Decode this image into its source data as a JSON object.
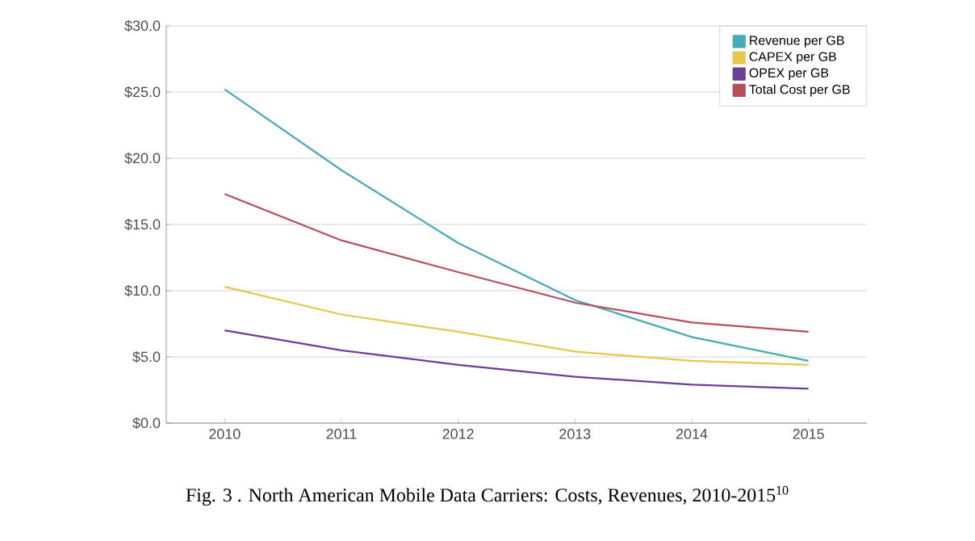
{
  "chart_data": {
    "type": "line",
    "title": "Fig. 3 .  North American Mobile Data Carriers: Costs, Revenues, 2010-2015$^{10}$",
    "categories": [
      "2010",
      "2011",
      "2012",
      "2013",
      "2014",
      "2015"
    ],
    "series": [
      {
        "name": "Revenue per GB",
        "color": "#45abb8",
        "values": [
          25.2,
          19.1,
          13.6,
          9.3,
          6.5,
          4.7
        ]
      },
      {
        "name": "CAPEX per GB",
        "color": "#e6c84a",
        "values": [
          10.3,
          8.2,
          6.9,
          5.4,
          4.7,
          4.4
        ]
      },
      {
        "name": "OPEX per GB",
        "color": "#6b3f96",
        "values": [
          7.0,
          5.5,
          4.4,
          3.5,
          2.9,
          2.6
        ]
      },
      {
        "name": "Total Cost per GB",
        "color": "#b5505a",
        "values": [
          17.3,
          13.8,
          11.4,
          9.1,
          7.6,
          6.9
        ]
      }
    ],
    "ylim": [
      0,
      30
    ],
    "yticks": [
      {
        "value": 0,
        "label": "$0.0"
      },
      {
        "value": 5,
        "label": "$5.0"
      },
      {
        "value": 10,
        "label": "$10.0"
      },
      {
        "value": 15,
        "label": "$15.0"
      },
      {
        "value": 20,
        "label": "$20.0"
      },
      {
        "value": 25,
        "label": "$25.0"
      },
      {
        "value": 30,
        "label": "$30.0"
      }
    ],
    "grid": "y",
    "legend": "top right",
    "marker": "none",
    "line_style": "solid"
  }
}
